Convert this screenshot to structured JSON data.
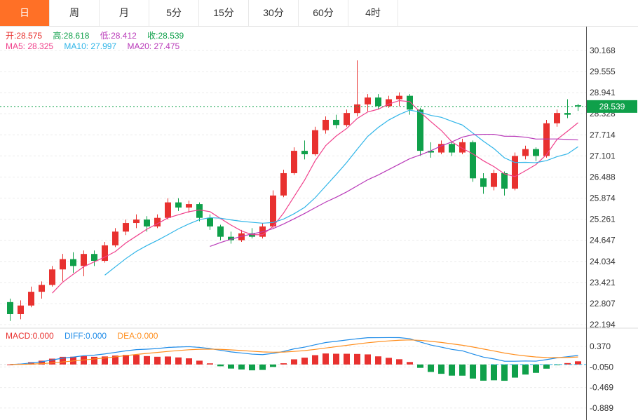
{
  "tabs": {
    "items": [
      "日",
      "周",
      "月",
      "5分",
      "15分",
      "30分",
      "60分",
      "4时"
    ],
    "active_index": 0
  },
  "info": {
    "ohlc": [
      {
        "text": "开:28.575",
        "color": "#e8312f"
      },
      {
        "text": "高:28.618",
        "color": "#0fa04a"
      },
      {
        "text": "低:28.412",
        "color": "#b93ab9"
      },
      {
        "text": "收:28.539",
        "color": "#0fa04a"
      }
    ],
    "ma": [
      {
        "text": "MA5: 28.325",
        "color": "#f0418c"
      },
      {
        "text": "MA10: 27.997",
        "color": "#30b5e8"
      },
      {
        "text": "MA20: 27.475",
        "color": "#b93ab9"
      }
    ],
    "macd": [
      {
        "text": "MACD:0.000",
        "color": "#e8312f"
      },
      {
        "text": "DIFF:0.000",
        "color": "#1f8ce8"
      },
      {
        "text": "DEA:0.000",
        "color": "#ff8f1f"
      }
    ]
  },
  "colors": {
    "accent": "#ff7026",
    "up": "#e8312f",
    "down": "#0fa04a",
    "ma5": "#f0418c",
    "ma10": "#30b5e8",
    "ma20": "#b93ab9",
    "diff_line": "#1f8ce8",
    "dea_line": "#ff8f1f",
    "grid": "#ececec",
    "axis_text": "#333333",
    "badge_bg": "#0fa04a",
    "price_line": "#0fa04a"
  },
  "chart_data": {
    "type": "candlestick",
    "interval_selected": "日",
    "price_axis_ticks": [
      30.168,
      29.555,
      28.941,
      28.328,
      27.714,
      27.101,
      26.488,
      25.874,
      25.261,
      24.647,
      24.034,
      23.421,
      22.807,
      22.194
    ],
    "macd_axis_ticks": [
      0.37,
      -0.05,
      -0.469,
      -0.889
    ],
    "current_price": 28.539,
    "ohlc_current": {
      "open": 28.575,
      "high": 28.618,
      "low": 28.412,
      "close": 28.539
    },
    "ma_values": {
      "MA5": 28.325,
      "MA10": 27.997,
      "MA20": 27.475
    },
    "macd_values": {
      "MACD": 0.0,
      "DIFF": 0.0,
      "DEA": 0.0
    },
    "overlays": {
      "ma_periods": [
        5,
        10,
        20
      ]
    },
    "candles": [
      [
        22.85,
        22.95,
        22.3,
        22.5
      ],
      [
        22.5,
        22.9,
        22.35,
        22.75
      ],
      [
        22.75,
        23.3,
        22.7,
        23.15
      ],
      [
        23.15,
        23.45,
        22.95,
        23.35
      ],
      [
        23.35,
        23.9,
        23.3,
        23.8
      ],
      [
        23.8,
        24.25,
        23.45,
        24.1
      ],
      [
        24.1,
        24.3,
        23.7,
        23.9
      ],
      [
        23.9,
        24.35,
        23.6,
        24.25
      ],
      [
        24.25,
        24.35,
        23.9,
        24.05
      ],
      [
        24.05,
        24.6,
        24.0,
        24.5
      ],
      [
        24.5,
        25.0,
        24.45,
        24.9
      ],
      [
        24.9,
        25.25,
        24.8,
        25.15
      ],
      [
        25.15,
        25.4,
        25.0,
        25.25
      ],
      [
        25.25,
        25.35,
        24.9,
        25.05
      ],
      [
        25.05,
        25.4,
        25.0,
        25.3
      ],
      [
        25.3,
        25.87,
        25.25,
        25.75
      ],
      [
        25.75,
        25.87,
        25.5,
        25.6
      ],
      [
        25.6,
        25.8,
        25.45,
        25.7
      ],
      [
        25.7,
        25.75,
        25.2,
        25.3
      ],
      [
        25.3,
        25.4,
        24.95,
        25.05
      ],
      [
        25.05,
        25.1,
        24.65,
        24.75
      ],
      [
        24.75,
        24.9,
        24.55,
        24.65
      ],
      [
        24.65,
        24.95,
        24.6,
        24.85
      ],
      [
        24.85,
        25.0,
        24.7,
        24.75
      ],
      [
        24.75,
        25.15,
        24.7,
        25.05
      ],
      [
        25.05,
        26.1,
        25.0,
        25.95
      ],
      [
        25.95,
        26.7,
        25.9,
        26.6
      ],
      [
        26.6,
        27.35,
        26.55,
        27.25
      ],
      [
        27.25,
        27.55,
        27.0,
        27.15
      ],
      [
        27.15,
        27.95,
        27.1,
        27.85
      ],
      [
        27.85,
        28.25,
        27.75,
        28.15
      ],
      [
        28.15,
        28.3,
        27.9,
        28.0
      ],
      [
        28.0,
        28.45,
        27.95,
        28.35
      ],
      [
        28.35,
        29.88,
        28.25,
        28.6
      ],
      [
        28.6,
        28.9,
        28.4,
        28.8
      ],
      [
        28.8,
        28.9,
        28.45,
        28.55
      ],
      [
        28.55,
        28.85,
        28.5,
        28.75
      ],
      [
        28.75,
        28.95,
        28.55,
        28.85
      ],
      [
        28.85,
        28.9,
        28.3,
        28.45
      ],
      [
        28.45,
        28.5,
        27.1,
        27.25
      ],
      [
        27.25,
        27.5,
        27.05,
        27.2
      ],
      [
        27.2,
        27.55,
        27.15,
        27.45
      ],
      [
        27.45,
        27.5,
        27.1,
        27.2
      ],
      [
        27.2,
        27.6,
        27.15,
        27.5
      ],
      [
        27.5,
        27.55,
        26.35,
        26.45
      ],
      [
        26.45,
        26.6,
        26.0,
        26.2
      ],
      [
        26.2,
        26.7,
        26.1,
        26.6
      ],
      [
        26.6,
        26.65,
        25.95,
        26.15
      ],
      [
        26.15,
        27.2,
        26.1,
        27.1
      ],
      [
        27.1,
        27.4,
        27.0,
        27.3
      ],
      [
        27.3,
        27.35,
        26.95,
        27.1
      ],
      [
        27.1,
        28.15,
        27.05,
        28.05
      ],
      [
        28.05,
        28.45,
        27.95,
        28.35
      ],
      [
        28.35,
        28.75,
        28.2,
        28.3
      ],
      [
        28.575,
        28.618,
        28.412,
        28.539
      ]
    ]
  }
}
